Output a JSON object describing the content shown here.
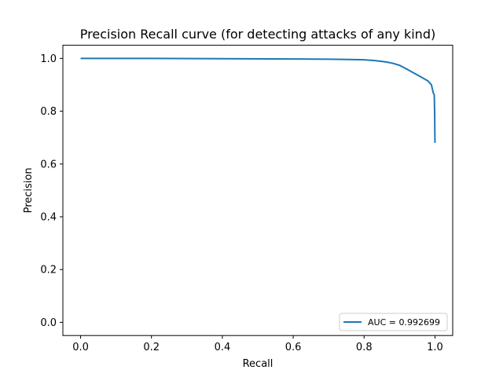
{
  "chart_data": {
    "type": "line",
    "title": "Precision Recall curve (for detecting attacks of any kind)",
    "xlabel": "Recall",
    "ylabel": "Precision",
    "xlim": [
      -0.05,
      1.05
    ],
    "ylim": [
      -0.05,
      1.05
    ],
    "xticks": [
      0.0,
      0.2,
      0.4,
      0.6,
      0.8,
      1.0
    ],
    "yticks": [
      0.0,
      0.2,
      0.4,
      0.6,
      0.8,
      1.0
    ],
    "xtick_labels": [
      "0.0",
      "0.2",
      "0.4",
      "0.6",
      "0.8",
      "1.0"
    ],
    "ytick_labels": [
      "0.0",
      "0.2",
      "0.4",
      "0.6",
      "0.8",
      "1.0"
    ],
    "grid": false,
    "legend_position": "lower-right",
    "color": "#1f77b4",
    "series": [
      {
        "name": "AUC = 0.992699",
        "x": [
          0.0,
          0.2,
          0.4,
          0.6,
          0.7,
          0.76,
          0.8,
          0.83,
          0.86,
          0.88,
          0.9,
          0.92,
          0.94,
          0.96,
          0.98,
          0.99,
          0.995,
          0.997,
          0.998,
          0.999,
          1.0
        ],
        "y": [
          1.0,
          1.0,
          0.999,
          0.998,
          0.997,
          0.996,
          0.995,
          0.992,
          0.987,
          0.982,
          0.974,
          0.96,
          0.945,
          0.93,
          0.915,
          0.9,
          0.87,
          0.865,
          0.86,
          0.8,
          0.68
        ]
      }
    ]
  }
}
